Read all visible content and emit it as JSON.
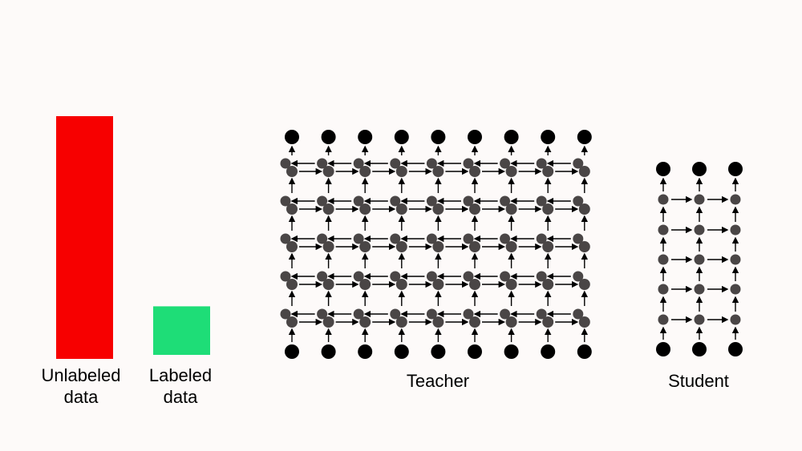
{
  "data_bars": {
    "unlabeled": {
      "label_line1": "Unlabeled",
      "label_line2": "data",
      "color": "#f70000",
      "relative_amount": 1.0
    },
    "labeled": {
      "label_line1": "Labeled",
      "label_line2": "data",
      "color": "#1edd77",
      "relative_amount": 0.2
    }
  },
  "teacher": {
    "label": "Teacher",
    "columns": 9,
    "hidden_layers": 5,
    "bidirectional": true
  },
  "student": {
    "label": "Student",
    "columns": 3,
    "hidden_layers": 5,
    "bidirectional": false
  },
  "colors": {
    "io_node": "#000000",
    "hidden_node": "#4a4646",
    "arrow": "#000000",
    "background": "#fdfaf9"
  }
}
